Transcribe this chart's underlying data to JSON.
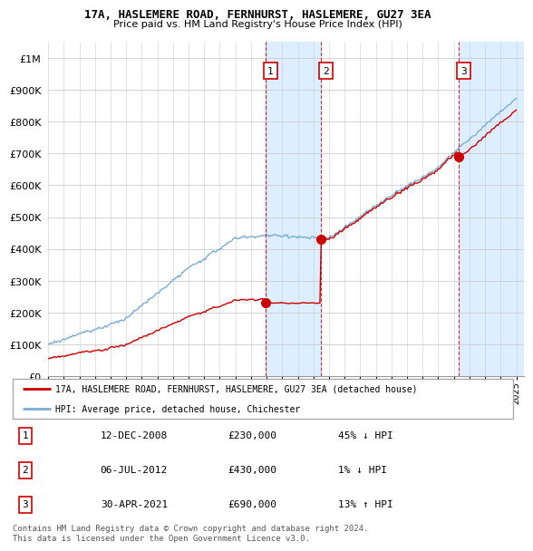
{
  "title1": "17A, HASLEMERE ROAD, FERNHURST, HASLEMERE, GU27 3EA",
  "title2": "Price paid vs. HM Land Registry's House Price Index (HPI)",
  "ytick_values": [
    0,
    100000,
    200000,
    300000,
    400000,
    500000,
    600000,
    700000,
    800000,
    900000,
    1000000
  ],
  "ylim": [
    0,
    1050000
  ],
  "xlim_start": 1995.0,
  "xlim_end": 2025.5,
  "legend_label_red": "17A, HASLEMERE ROAD, FERNHURST, HASLEMERE, GU27 3EA (detached house)",
  "legend_label_blue": "HPI: Average price, detached house, Chichester",
  "sale1_x": 2008.95,
  "sale1_y": 230000,
  "sale2_x": 2012.5,
  "sale2_y": 430000,
  "sale3_x": 2021.33,
  "sale3_y": 690000,
  "annotation1": [
    "1",
    "12-DEC-2008",
    "£230,000",
    "45% ↓ HPI"
  ],
  "annotation2": [
    "2",
    "06-JUL-2012",
    "£430,000",
    "1% ↓ HPI"
  ],
  "annotation3": [
    "3",
    "30-APR-2021",
    "£690,000",
    "13% ↑ HPI"
  ],
  "footer": "Contains HM Land Registry data © Crown copyright and database right 2024.\nThis data is licensed under the Open Government Licence v3.0.",
  "red_color": "#cc0000",
  "blue_color": "#7aadd4",
  "highlight_color": "#ddeeff",
  "background_color": "#ffffff",
  "grid_color": "#cccccc"
}
